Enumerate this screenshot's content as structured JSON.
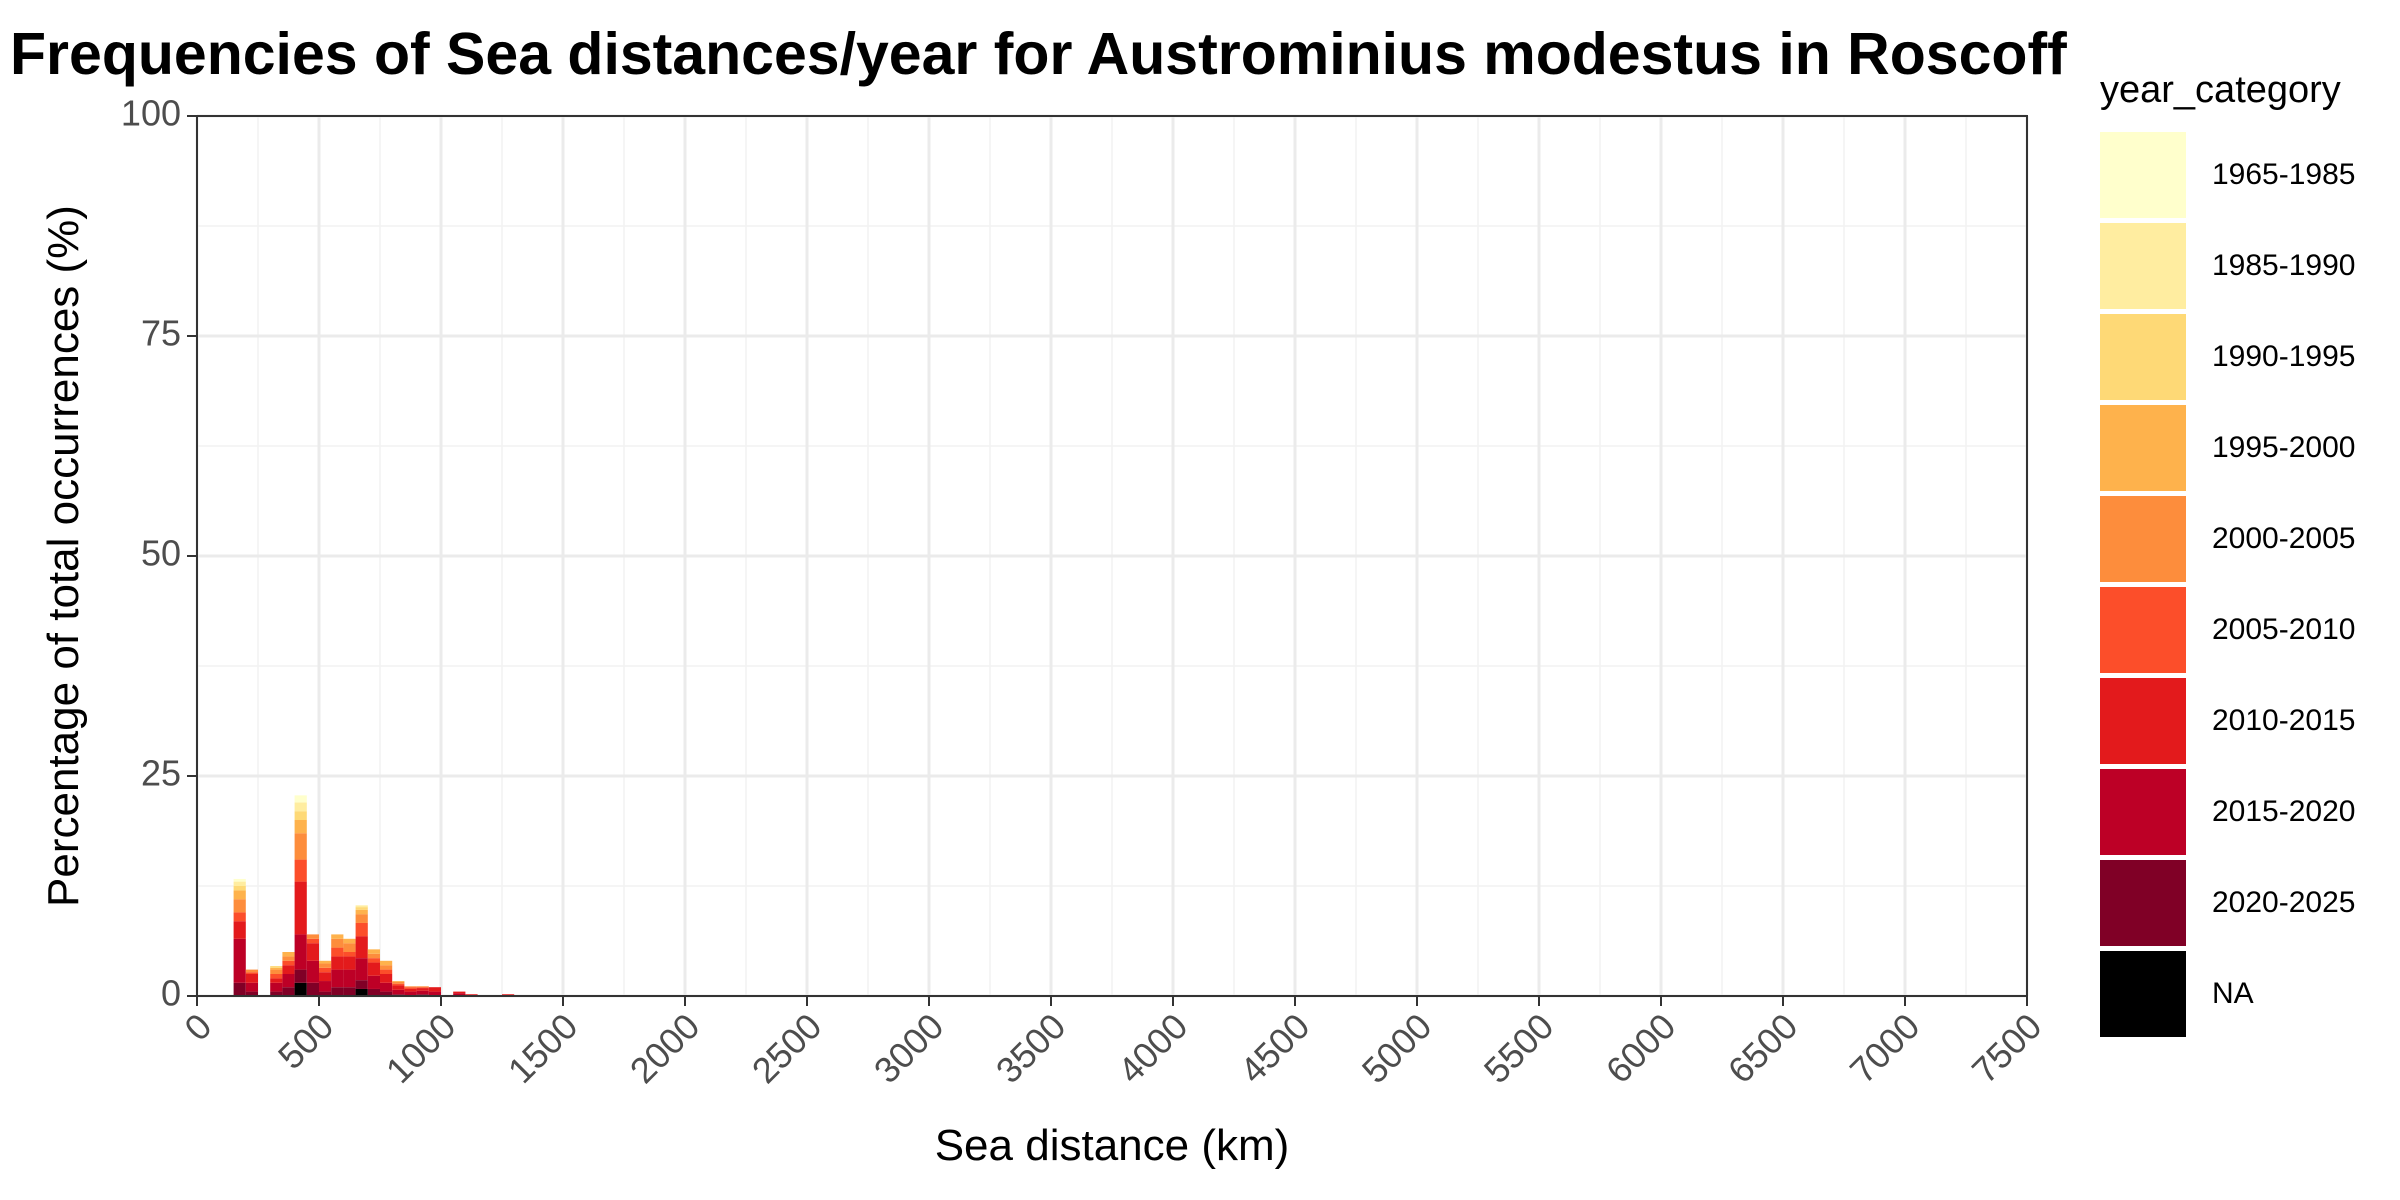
{
  "chart_data": {
    "type": "bar",
    "stacked": true,
    "title": "Frequencies of Sea distances/year for Austrominius modestus in Roscoff",
    "xlabel": "Sea distance (km)",
    "ylabel": "Percentage of total occurrences (%)",
    "xlim": [
      0,
      7500
    ],
    "ylim": [
      0,
      100
    ],
    "x_ticks": [
      "0",
      "500",
      "1000",
      "1500",
      "2000",
      "2500",
      "3000",
      "3500",
      "4000",
      "4500",
      "5000",
      "5500",
      "6000",
      "6500",
      "7000",
      "7500"
    ],
    "y_ticks": [
      "0",
      "25",
      "50",
      "75",
      "100"
    ],
    "grid": true,
    "bin_width": 50,
    "legend": {
      "title": "year_category",
      "position": "right"
    },
    "series": [
      {
        "name": "NA",
        "color": "#000000",
        "values": [
          0,
          0,
          0,
          0,
          0,
          1.5,
          0,
          0,
          0,
          0,
          0.8,
          0,
          0,
          0,
          0,
          0,
          0,
          0,
          0,
          0,
          0,
          0,
          0
        ]
      },
      {
        "name": "2020-2025",
        "color": "#800026",
        "values": [
          1.5,
          0.5,
          0,
          0.5,
          1.0,
          1.5,
          1.5,
          0.5,
          1.0,
          1.0,
          1.0,
          0.8,
          0.5,
          0.2,
          0.1,
          0.2,
          0,
          0,
          0.1,
          0,
          0,
          0,
          0
        ]
      },
      {
        "name": "2015-2020",
        "color": "#bd0026",
        "values": [
          5.0,
          1.0,
          0,
          1.0,
          1.5,
          4.0,
          2.5,
          1.2,
          2.0,
          2.0,
          2.5,
          1.5,
          1.0,
          0.5,
          0.4,
          0.4,
          0.5,
          0,
          0.2,
          0.1,
          0,
          0,
          0.1
        ]
      },
      {
        "name": "2010-2015",
        "color": "#e31a1c",
        "values": [
          2.0,
          1.0,
          0,
          0.5,
          1.0,
          6.0,
          2.0,
          1.0,
          1.5,
          1.5,
          2.5,
          1.5,
          1.0,
          0.5,
          0.3,
          0.3,
          0.5,
          0,
          0.2,
          0.1,
          0.1,
          0,
          0.1
        ]
      },
      {
        "name": "2005-2010",
        "color": "#fc4e2a",
        "values": [
          1.0,
          0.2,
          0,
          0.5,
          0.5,
          2.5,
          0.5,
          0.5,
          1.0,
          0.5,
          1.5,
          0.5,
          0.5,
          0.2,
          0.2,
          0.1,
          0,
          0,
          0,
          0,
          0,
          0,
          0
        ]
      },
      {
        "name": "2000-2005",
        "color": "#fd8d3c",
        "values": [
          1.5,
          0.3,
          0,
          0.5,
          0.5,
          3.0,
          0.5,
          0.5,
          1.0,
          1.0,
          1.0,
          0.5,
          0.5,
          0.2,
          0.1,
          0.1,
          0,
          0,
          0,
          0,
          0,
          0,
          0
        ]
      },
      {
        "name": "1995-2000",
        "color": "#feb24c",
        "values": [
          1.0,
          0,
          0,
          0.2,
          0.5,
          1.5,
          0,
          0.3,
          0.5,
          0.5,
          0.5,
          0.5,
          0.5,
          0.1,
          0,
          0,
          0,
          0,
          0,
          0,
          0,
          0,
          0
        ]
      },
      {
        "name": "1990-1995",
        "color": "#fed976",
        "values": [
          0.5,
          0,
          0,
          0.2,
          0,
          1.0,
          0,
          0,
          0,
          0,
          0.3,
          0,
          0,
          0,
          0,
          0,
          0,
          0,
          0,
          0,
          0,
          0,
          0
        ]
      },
      {
        "name": "1985-1990",
        "color": "#ffeda0",
        "values": [
          0.5,
          0,
          0,
          0,
          0,
          1.0,
          0,
          0,
          0,
          0,
          0.2,
          0,
          0,
          0,
          0,
          0,
          0,
          0,
          0,
          0,
          0,
          0,
          0
        ]
      },
      {
        "name": "1965-1985",
        "color": "#ffffcc",
        "values": [
          0.3,
          0,
          0,
          0,
          0,
          0.8,
          0,
          0,
          0,
          0,
          0,
          0,
          0,
          0,
          0,
          0,
          0,
          0,
          0,
          0,
          0,
          0,
          0
        ]
      }
    ],
    "bins_start": [
      150,
      200,
      250,
      300,
      350,
      400,
      450,
      500,
      550,
      600,
      650,
      700,
      750,
      800,
      850,
      900,
      950,
      1000,
      1050,
      1100,
      1150,
      1200,
      1250
    ],
    "legend_order": [
      "1965-1985",
      "1985-1990",
      "1990-1995",
      "1995-2000",
      "2000-2005",
      "2005-2010",
      "2010-2015",
      "2015-2020",
      "2020-2025",
      "NA"
    ]
  }
}
